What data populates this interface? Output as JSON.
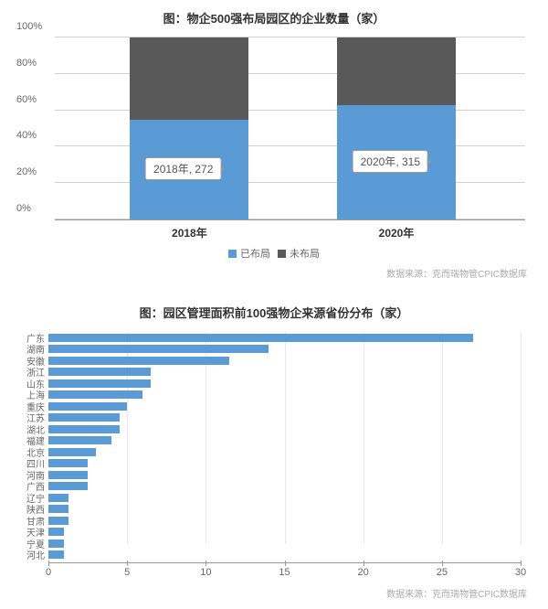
{
  "chart1": {
    "title": "图：物企500强布局园区的企业数量（家）",
    "ylabels": [
      "0%",
      "20%",
      "40%",
      "60%",
      "80%",
      "100%"
    ],
    "bars": [
      {
        "x_label": "2018年",
        "segments": [
          55,
          45
        ],
        "callout": "2018年, 272",
        "left_pct": 16
      },
      {
        "x_label": "2020年",
        "segments": [
          63,
          37
        ],
        "callout": "2020年, 315",
        "left_pct": 60
      }
    ],
    "colors": {
      "seg1": "#5b9bd5",
      "seg2": "#595959"
    },
    "legend": [
      {
        "label": "已布局",
        "color": "#5b9bd5"
      },
      {
        "label": "未布局",
        "color": "#595959"
      }
    ],
    "source": "数据来源：克而瑞物管CPIC数据库"
  },
  "chart2": {
    "title": "图：园区管理面积前100强物企来源省份分布（家）",
    "xmax": 30,
    "xticks": [
      0,
      5,
      10,
      15,
      20,
      25,
      30
    ],
    "bar_color": "#5b9bd5",
    "rows": [
      {
        "label": "广东",
        "value": 27
      },
      {
        "label": "湖南",
        "value": 14
      },
      {
        "label": "安徽",
        "value": 11.5
      },
      {
        "label": "浙江",
        "value": 6.5
      },
      {
        "label": "山东",
        "value": 6.5
      },
      {
        "label": "上海",
        "value": 6
      },
      {
        "label": "重庆",
        "value": 5
      },
      {
        "label": "江苏",
        "value": 4.5
      },
      {
        "label": "湖北",
        "value": 4.5
      },
      {
        "label": "福建",
        "value": 4
      },
      {
        "label": "北京",
        "value": 3
      },
      {
        "label": "四川",
        "value": 2.5
      },
      {
        "label": "河南",
        "value": 2.5
      },
      {
        "label": "广西",
        "value": 2.5
      },
      {
        "label": "辽宁",
        "value": 1.3
      },
      {
        "label": "陕西",
        "value": 1.3
      },
      {
        "label": "甘肃",
        "value": 1.3
      },
      {
        "label": "天津",
        "value": 1
      },
      {
        "label": "宁夏",
        "value": 1
      },
      {
        "label": "河北",
        "value": 1
      }
    ],
    "source": "数据来源：克而瑞物管CPIC数据库"
  }
}
